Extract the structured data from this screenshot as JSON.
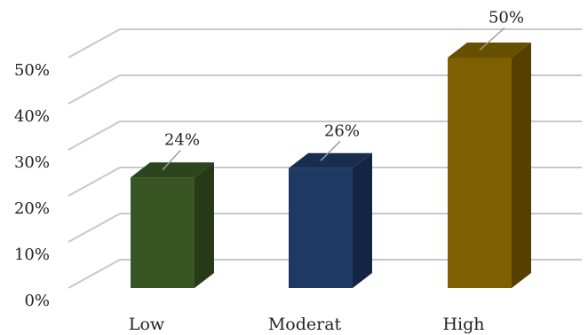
{
  "chart_data": {
    "type": "bar",
    "title": "",
    "xlabel": "",
    "ylabel": "",
    "categories": [
      "Low",
      "Moderat",
      "High"
    ],
    "values": [
      24,
      26,
      50
    ],
    "data_labels": [
      "24%",
      "26%",
      "50%"
    ],
    "ylim": [
      0,
      50
    ],
    "y_ticks": [
      "0%",
      "10%",
      "20%",
      "30%",
      "40%",
      "50%"
    ],
    "grid": true,
    "legend": "none",
    "style": "3d-column",
    "bar_colors": [
      "#375623",
      "#1F3864",
      "#7F6000"
    ],
    "side_colors": [
      "#253A17",
      "#142543",
      "#554000"
    ],
    "top_colors": [
      "#2C451C",
      "#192D50",
      "#665000"
    ],
    "grid_color": "#C8C8C8"
  }
}
